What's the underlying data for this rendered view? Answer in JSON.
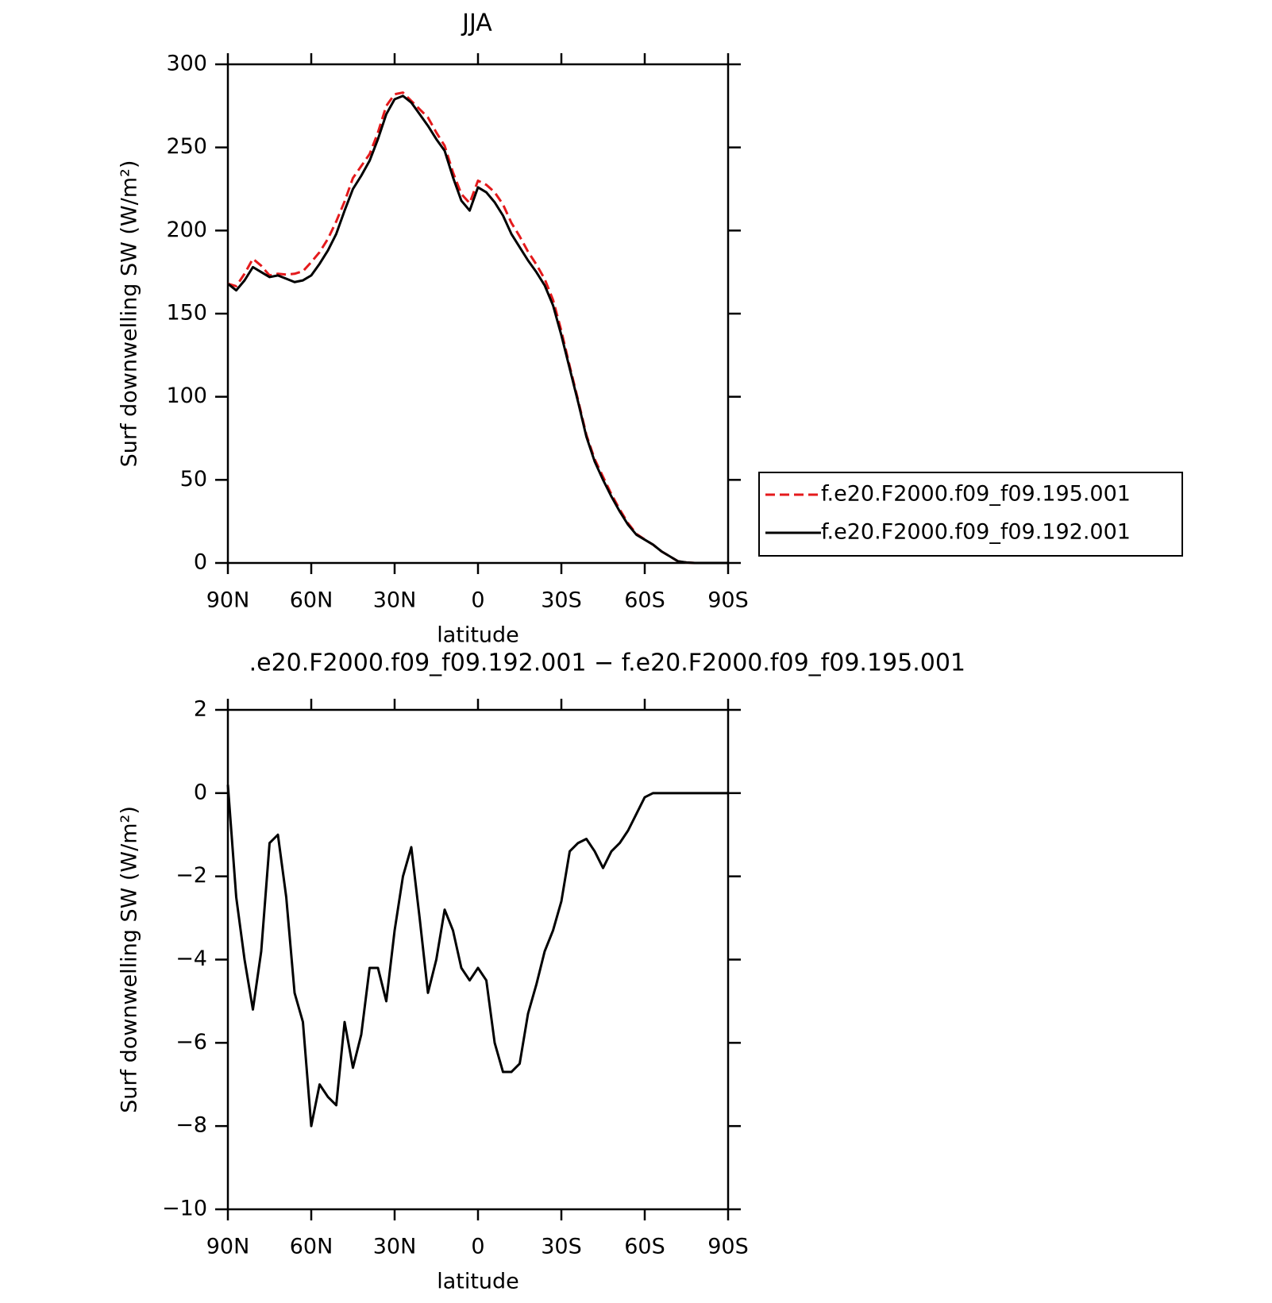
{
  "chart_data": [
    {
      "type": "line",
      "title": "JJA",
      "xlabel": "latitude",
      "ylabel": "Surf downwelling SW (W/m²)",
      "x": [
        90,
        87,
        84,
        81,
        78,
        75,
        72,
        69,
        66,
        63,
        60,
        57,
        54,
        51,
        48,
        45,
        42,
        39,
        36,
        33,
        30,
        27,
        24,
        21,
        18,
        15,
        12,
        9,
        6,
        3,
        0,
        -3,
        -6,
        -9,
        -12,
        -15,
        -18,
        -21,
        -24,
        -27,
        -30,
        -33,
        -36,
        -39,
        -42,
        -45,
        -48,
        -51,
        -54,
        -57,
        -60,
        -63,
        -66,
        -69,
        -72,
        -75,
        -78,
        -81,
        -84,
        -87,
        -90
      ],
      "series": [
        {
          "name": "f.e20.F2000.f09_f09.195.001",
          "color": "#e41a1c",
          "linestyle": "dashed",
          "values": [
            168,
            166.5,
            174,
            183,
            178.8,
            173,
            174,
            173.5,
            174,
            175.5,
            181,
            187,
            195,
            205.5,
            217.5,
            231.6,
            238.8,
            246,
            259,
            275,
            282,
            283,
            278,
            273,
            268,
            259,
            251,
            235,
            222,
            216.5,
            230,
            227.5,
            223,
            215.7,
            204.7,
            196.5,
            187.3,
            179.6,
            170.8,
            158.3,
            139.6,
            118.4,
            98.2,
            77.1,
            62.4,
            51.8,
            41.4,
            32.2,
            23.9,
            17.5,
            14.1,
            11,
            7,
            4,
            1,
            0.3,
            0,
            0,
            0,
            0,
            0
          ]
        },
        {
          "name": "f.e20.F2000.f09_f09.192.001",
          "color": "#000000",
          "linestyle": "solid",
          "values": [
            168,
            164,
            170,
            178,
            175,
            172,
            173,
            171,
            169,
            170,
            173,
            180,
            188,
            198,
            212,
            225,
            233,
            242,
            255,
            270,
            279,
            281,
            277,
            270,
            263,
            255,
            248,
            232,
            218,
            212,
            226,
            223,
            217,
            209,
            198,
            190,
            182,
            175,
            167,
            155,
            137,
            117,
            97,
            76,
            61,
            50,
            40,
            31,
            23,
            17,
            14,
            11,
            7,
            4,
            1,
            0.3,
            0,
            0,
            0,
            0,
            0
          ]
        }
      ],
      "xlim": [
        90,
        -90
      ],
      "xticks": [
        {
          "value": 90,
          "label": "90N"
        },
        {
          "value": 60,
          "label": "60N"
        },
        {
          "value": 30,
          "label": "30N"
        },
        0,
        {
          "value": -30,
          "label": "30S"
        },
        {
          "value": -60,
          "label": "60S"
        },
        {
          "value": -90,
          "label": "90S"
        }
      ],
      "ylim": [
        0,
        300
      ],
      "yticks": [
        0,
        50,
        100,
        150,
        200,
        250,
        300
      ],
      "legend": "right"
    },
    {
      "type": "line",
      "title": ".e20.F2000.f09_f09.192.001 − f.e20.F2000.f09_f09.195.001",
      "xlabel": "latitude",
      "ylabel": "Surf downwelling SW (W/m²)",
      "x": [
        90,
        87,
        84,
        81,
        78,
        75,
        72,
        69,
        66,
        63,
        60,
        57,
        54,
        51,
        48,
        45,
        42,
        39,
        36,
        33,
        30,
        27,
        24,
        21,
        18,
        15,
        12,
        9,
        6,
        3,
        0,
        -3,
        -6,
        -9,
        -12,
        -15,
        -18,
        -21,
        -24,
        -27,
        -30,
        -33,
        -36,
        -39,
        -42,
        -45,
        -48,
        -51,
        -54,
        -57,
        -60,
        -63,
        -66,
        -69,
        -72,
        -75,
        -78,
        -81,
        -84,
        -87,
        -90
      ],
      "values": [
        0.2,
        -2.5,
        -4.0,
        -5.2,
        -3.8,
        -1.2,
        -1.0,
        -2.5,
        -4.8,
        -5.5,
        -8.0,
        -7.0,
        -7.3,
        -7.5,
        -5.5,
        -6.6,
        -5.8,
        -4.2,
        -4.2,
        -5.0,
        -3.3,
        -2.0,
        -1.3,
        -3.0,
        -4.8,
        -4.0,
        -2.8,
        -3.3,
        -4.2,
        -4.5,
        -4.2,
        -4.5,
        -6.0,
        -6.7,
        -6.7,
        -6.5,
        -5.3,
        -4.6,
        -3.8,
        -3.3,
        -2.6,
        -1.4,
        -1.2,
        -1.1,
        -1.4,
        -1.8,
        -1.4,
        -1.2,
        -0.9,
        -0.5,
        -0.1,
        0,
        0,
        0,
        0,
        0,
        0,
        0,
        0,
        0,
        0
      ],
      "color": "#000000",
      "xlim": [
        90,
        -90
      ],
      "xticks": [
        {
          "value": 90,
          "label": "90N"
        },
        {
          "value": 60,
          "label": "60N"
        },
        {
          "value": 30,
          "label": "30N"
        },
        0,
        {
          "value": -30,
          "label": "30S"
        },
        {
          "value": -60,
          "label": "60S"
        },
        {
          "value": -90,
          "label": "90S"
        }
      ],
      "ylim": [
        -10,
        2
      ],
      "yticks": [
        {
          "value": -10,
          "label": "−10"
        },
        {
          "value": -8,
          "label": "−8"
        },
        {
          "value": -6,
          "label": "−6"
        },
        {
          "value": -4,
          "label": "−4"
        },
        {
          "value": -2,
          "label": "−2"
        },
        0,
        2
      ]
    }
  ]
}
